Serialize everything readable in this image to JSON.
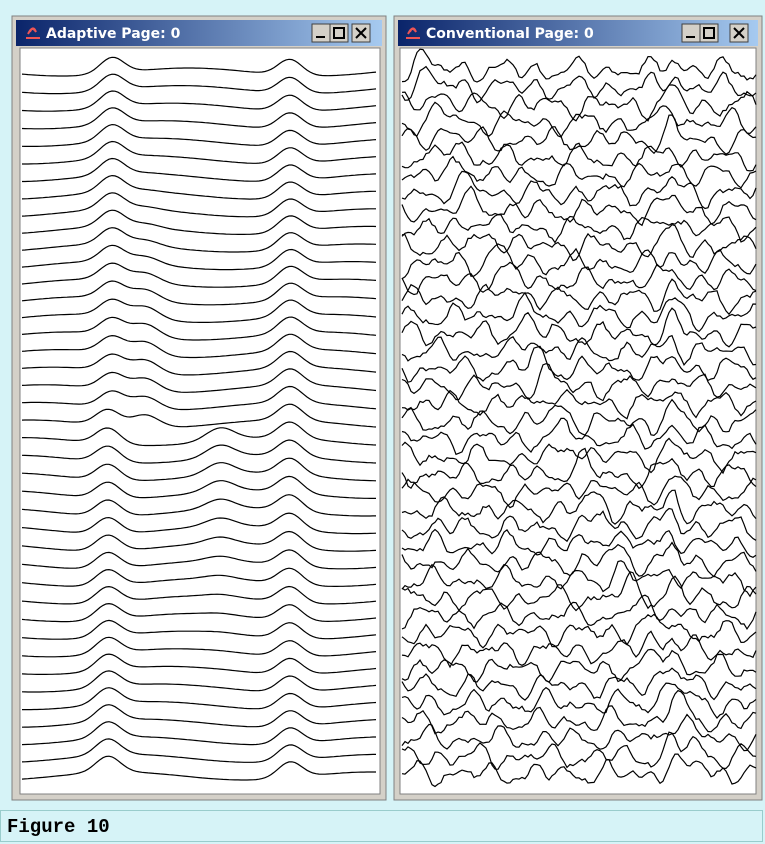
{
  "windows": [
    {
      "title": "Adaptive Page: 0"
    },
    {
      "title": "Conventional Page: 0"
    }
  ],
  "caption": "Figure 10"
}
